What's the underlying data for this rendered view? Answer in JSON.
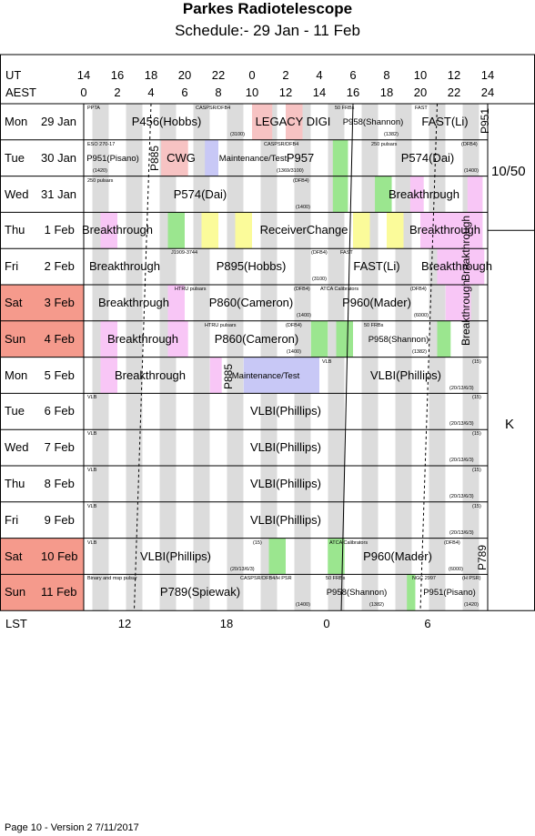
{
  "title": "Parkes Radiotelescope",
  "subtitle": "Schedule:- 29 Jan - 11 Feb",
  "axes": {
    "ut_label": "UT",
    "aest_label": "AEST",
    "lst_label": "LST",
    "ut_ticks": [
      "14",
      "16",
      "18",
      "20",
      "22",
      "0",
      "2",
      "4",
      "6",
      "8",
      "10",
      "12",
      "14"
    ],
    "aest_ticks": [
      "0",
      "2",
      "4",
      "6",
      "8",
      "10",
      "12",
      "14",
      "16",
      "18",
      "20",
      "22",
      "24"
    ],
    "lst_ticks": [
      "12",
      "18",
      "0",
      "6"
    ]
  },
  "colors": {
    "weekend": "#f59a8c",
    "grey": "#d6d6d6",
    "pink": "#f8c6f6",
    "green": "#9be68f",
    "yellow": "#fbfb9a",
    "lavender": "#c8c8f6",
    "salmon": "#f7c3c3"
  },
  "days": [
    {
      "name": "Mon",
      "date": "29 Jan",
      "weekend": false
    },
    {
      "name": "Tue",
      "date": "30 Jan",
      "weekend": false
    },
    {
      "name": "Wed",
      "date": "31 Jan",
      "weekend": false
    },
    {
      "name": "Thu",
      "date": " 1 Feb",
      "weekend": false
    },
    {
      "name": "Fri",
      "date": " 2 Feb",
      "weekend": false
    },
    {
      "name": "Sat",
      "date": " 3 Feb",
      "weekend": true
    },
    {
      "name": "Sun",
      "date": " 4 Feb",
      "weekend": true
    },
    {
      "name": "Mon",
      "date": " 5 Feb",
      "weekend": false
    },
    {
      "name": "Tue",
      "date": " 6 Feb",
      "weekend": false
    },
    {
      "name": "Wed",
      "date": " 7 Feb",
      "weekend": false
    },
    {
      "name": "Thu",
      "date": " 8 Feb",
      "weekend": false
    },
    {
      "name": "Fri",
      "date": " 9 Feb",
      "weekend": false
    },
    {
      "name": "Sat",
      "date": "10 Feb",
      "weekend": true
    },
    {
      "name": "Sun",
      "date": "11 Feb",
      "weekend": true
    }
  ],
  "rows": [
    {
      "labels": [
        {
          "t": "P456(Hobbs)"
        },
        {
          "t": "LEGACY DIGI"
        },
        {
          "t": "P958(Shannon)"
        },
        {
          "t": "FAST(Li)"
        }
      ],
      "tiny": [
        {
          "t": "PPTA"
        },
        {
          "t": "CASPSR/DFB4"
        },
        {
          "t": "(3100)"
        },
        {
          "t": "50 FRBs"
        },
        {
          "t": "FAST"
        },
        {
          "t": "(1382)"
        }
      ],
      "vert": [
        {
          "t": "P951"
        }
      ]
    },
    {
      "labels": [
        {
          "t": "P951(Pisano)"
        },
        {
          "t": "CWG"
        },
        {
          "t": "Maintenance/Test"
        },
        {
          "t": "P957"
        },
        {
          "t": "P574(Dai)"
        }
      ],
      "tiny": [
        {
          "t": "ESO 270-17"
        },
        {
          "t": "(1420)"
        },
        {
          "t": "CASPSR/DFB4"
        },
        {
          "t": "(1369/3100)"
        },
        {
          "t": "250 pulsars"
        },
        {
          "t": "(DFB4)"
        },
        {
          "t": "(1400)"
        }
      ],
      "vert": [
        {
          "t": "P885"
        }
      ]
    },
    {
      "labels": [
        {
          "t": "P574(Dai)"
        },
        {
          "t": "Breakthrough"
        }
      ],
      "tiny": [
        {
          "t": "250 pulsars"
        },
        {
          "t": "(DFB4)"
        },
        {
          "t": "(1400)"
        }
      ],
      "vert": []
    },
    {
      "labels": [
        {
          "t": "Breakthrough"
        },
        {
          "t": "ReceiverChange"
        },
        {
          "t": "Breakthrough"
        }
      ],
      "tiny": [],
      "vert": []
    },
    {
      "labels": [
        {
          "t": "Breakthrough"
        },
        {
          "t": "P895(Hobbs)"
        },
        {
          "t": "FAST(Li)"
        },
        {
          "t": "Breakthrough"
        }
      ],
      "tiny": [
        {
          "t": "J1909-3744"
        },
        {
          "t": "(DFB4)"
        },
        {
          "t": "(3100)"
        },
        {
          "t": "FAST"
        }
      ],
      "vert": [
        {
          "t": "Breakthrough"
        }
      ]
    },
    {
      "labels": [
        {
          "t": "Breakthrough"
        },
        {
          "t": "P860(Cameron)"
        },
        {
          "t": "P960(Mader)"
        }
      ],
      "tiny": [
        {
          "t": "HTRU pulsars"
        },
        {
          "t": "(DFB4)"
        },
        {
          "t": "(1400)"
        },
        {
          "t": "ATCA Calibrators"
        },
        {
          "t": "(DFB4)"
        },
        {
          "t": "(6000)"
        }
      ],
      "vert": [
        {
          "t": "Breakthrough"
        }
      ]
    },
    {
      "labels": [
        {
          "t": "Breakthrough"
        },
        {
          "t": "P860(Cameron)"
        },
        {
          "t": "P958(Shannon)"
        }
      ],
      "tiny": [
        {
          "t": "HTRU pulsars"
        },
        {
          "t": "(DFB4)"
        },
        {
          "t": "(1400)"
        },
        {
          "t": "50 FRBs"
        },
        {
          "t": "(1382)"
        }
      ],
      "vert": []
    },
    {
      "labels": [
        {
          "t": "Breakthrough"
        },
        {
          "t": "Maintenance/Test"
        },
        {
          "t": "VLBI(Phillips)"
        }
      ],
      "tiny": [
        {
          "t": "VLB"
        },
        {
          "t": "(15)"
        },
        {
          "t": "(20/13/6/3)"
        }
      ],
      "vert": [
        {
          "t": "P885"
        }
      ]
    },
    {
      "labels": [
        {
          "t": "VLBI(Phillips)"
        }
      ],
      "tiny": [
        {
          "t": "VLB"
        },
        {
          "t": "(15)"
        },
        {
          "t": "(20/13/6/3)"
        }
      ],
      "vert": []
    },
    {
      "labels": [
        {
          "t": "VLBI(Phillips)"
        }
      ],
      "tiny": [
        {
          "t": "VLB"
        },
        {
          "t": "(15)"
        },
        {
          "t": "(20/13/6/3)"
        }
      ],
      "vert": []
    },
    {
      "labels": [
        {
          "t": "VLBI(Phillips)"
        }
      ],
      "tiny": [
        {
          "t": "VLB"
        },
        {
          "t": "(15)"
        },
        {
          "t": "(20/13/6/3)"
        }
      ],
      "vert": []
    },
    {
      "labels": [
        {
          "t": "VLBI(Phillips)"
        }
      ],
      "tiny": [
        {
          "t": "VLB"
        },
        {
          "t": "(15)"
        },
        {
          "t": "(20/13/6/3)"
        }
      ],
      "vert": []
    },
    {
      "labels": [
        {
          "t": "VLBI(Phillips)"
        },
        {
          "t": "P960(Mader)"
        }
      ],
      "tiny": [
        {
          "t": "VLB"
        },
        {
          "t": "(15)"
        },
        {
          "t": "(20/13/6/3)"
        },
        {
          "t": "ATCA Calibrators"
        },
        {
          "t": "(DFB4)"
        },
        {
          "t": "(6000)"
        }
      ],
      "vert": [
        {
          "t": "P789"
        }
      ]
    },
    {
      "labels": [
        {
          "t": "P789(Spiewak)"
        },
        {
          "t": "P958(Shannon)"
        },
        {
          "t": "P951(Pisano)"
        }
      ],
      "tiny": [
        {
          "t": "Binary and msp pulsar"
        },
        {
          "t": "CASPSR/DFB4/H PSR"
        },
        {
          "t": "(1400)"
        },
        {
          "t": "50 FRBs"
        },
        {
          "t": "(1382)"
        },
        {
          "t": "NGC 2997"
        },
        {
          "t": "(H PSR)"
        },
        {
          "t": "(1420)"
        }
      ],
      "vert": []
    }
  ],
  "side": {
    "top_label": "10/50",
    "k_label": "K"
  },
  "footer": "Page 10 - Version 2  7/11/2017"
}
